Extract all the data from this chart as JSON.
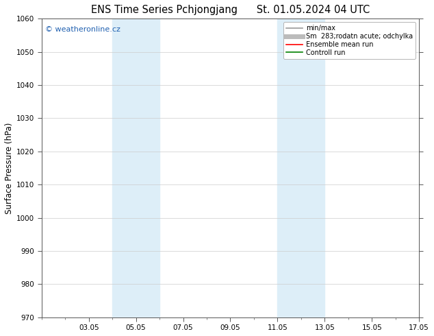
{
  "title_left": "ENS Time Series Pchjongjang",
  "title_right": "St. 01.05.2024 04 UTC",
  "ylabel": "Surface Pressure (hPa)",
  "ylim": [
    970,
    1060
  ],
  "yticks": [
    970,
    980,
    990,
    1000,
    1010,
    1020,
    1030,
    1040,
    1050,
    1060
  ],
  "xlim": [
    0,
    16
  ],
  "xtick_labels": [
    "03.05",
    "05.05",
    "07.05",
    "09.05",
    "11.05",
    "13.05",
    "15.05",
    "17.05"
  ],
  "xtick_positions": [
    2,
    4,
    6,
    8,
    10,
    12,
    14,
    16
  ],
  "shaded_bands": [
    {
      "x_start": 3,
      "x_end": 5
    },
    {
      "x_start": 10,
      "x_end": 12
    }
  ],
  "shaded_color": "#ddeef8",
  "watermark_text": "© weatheronline.cz",
  "watermark_color": "#2060b0",
  "watermark_fontsize": 8,
  "legend_entries": [
    {
      "label": "min/max",
      "color": "#999999",
      "lw": 1.2,
      "style": "solid"
    },
    {
      "label": "Sm  283;rodatn acute; odchylka",
      "color": "#bbbbbb",
      "lw": 5,
      "style": "solid"
    },
    {
      "label": "Ensemble mean run",
      "color": "red",
      "lw": 1.2,
      "style": "solid"
    },
    {
      "label": "Controll run",
      "color": "green",
      "lw": 1.2,
      "style": "solid"
    }
  ],
  "bg_color": "#ffffff",
  "plot_bg_color": "#ffffff",
  "grid_color": "#cccccc",
  "tick_fontsize": 7.5,
  "label_fontsize": 8.5,
  "title_fontsize": 10.5
}
